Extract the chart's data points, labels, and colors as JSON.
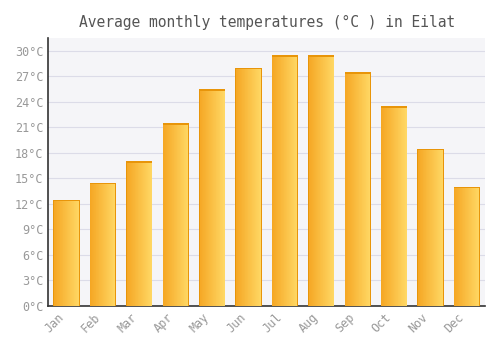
{
  "title": "Average monthly temperatures (°C ) in Eilat",
  "months": [
    "Jan",
    "Feb",
    "Mar",
    "Apr",
    "May",
    "Jun",
    "Jul",
    "Aug",
    "Sep",
    "Oct",
    "Nov",
    "Dec"
  ],
  "temperatures": [
    12.5,
    14.5,
    17.0,
    21.5,
    25.5,
    28.0,
    29.5,
    29.5,
    27.5,
    23.5,
    18.5,
    14.0
  ],
  "bar_color_left": "#F5A623",
  "bar_color_right": "#FFD966",
  "bar_color_mid": "#FFBB33",
  "background_color": "#FFFFFF",
  "plot_bg_color": "#F5F5F8",
  "grid_color": "#DCDCE8",
  "title_color": "#555555",
  "tick_color": "#999999",
  "axis_color": "#333333",
  "ytick_labels": [
    "0°C",
    "3°C",
    "6°C",
    "9°C",
    "12°C",
    "15°C",
    "18°C",
    "21°C",
    "24°C",
    "27°C",
    "30°C"
  ],
  "ytick_values": [
    0,
    3,
    6,
    9,
    12,
    15,
    18,
    21,
    24,
    27,
    30
  ],
  "ylim": [
    0,
    31.5
  ],
  "font_family": "monospace",
  "title_fontsize": 10.5,
  "tick_fontsize": 8.5,
  "bar_width": 0.72
}
